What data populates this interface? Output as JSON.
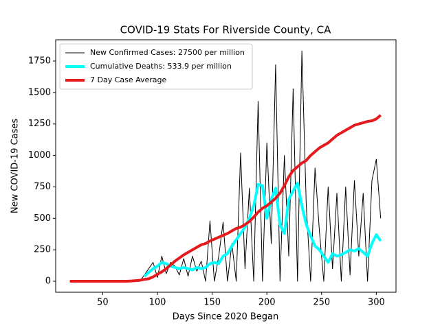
{
  "chart_data": {
    "type": "line",
    "title": "COVID-19 Stats For Riverside County, CA",
    "xlabel": "Days Since 2020 Began",
    "ylabel": "New COVID-19 Cases",
    "x": [
      20,
      24,
      28,
      32,
      36,
      40,
      44,
      48,
      52,
      56,
      60,
      64,
      68,
      72,
      76,
      80,
      84,
      88,
      92,
      96,
      100,
      104,
      108,
      112,
      116,
      120,
      124,
      128,
      132,
      136,
      140,
      144,
      148,
      152,
      156,
      160,
      164,
      168,
      172,
      176,
      180,
      184,
      188,
      192,
      196,
      200,
      204,
      208,
      212,
      216,
      220,
      224,
      228,
      232,
      236,
      240,
      244,
      248,
      252,
      256,
      260,
      264,
      268,
      272,
      276,
      280,
      284,
      288,
      292,
      296,
      300,
      304
    ],
    "series": [
      {
        "name": "New Confirmed Cases: 27500 per million",
        "color": "#000000",
        "width": 1,
        "values": [
          0,
          0,
          0,
          0,
          0,
          0,
          0,
          0,
          0,
          0,
          0,
          0,
          0,
          0,
          0,
          0,
          0,
          50,
          100,
          150,
          30,
          200,
          60,
          150,
          120,
          50,
          180,
          40,
          200,
          80,
          160,
          0,
          480,
          0,
          200,
          470,
          0,
          300,
          0,
          1020,
          100,
          740,
          0,
          1430,
          0,
          1100,
          300,
          1720,
          0,
          1000,
          200,
          1530,
          0,
          1830,
          600,
          0,
          900,
          400,
          0,
          750,
          100,
          700,
          0,
          750,
          50,
          800,
          200,
          700,
          0,
          800,
          970,
          500
        ]
      },
      {
        "name": "Cumulative Deaths: 533.9 per million",
        "color": "#00ffff",
        "width": 4,
        "values": [
          null,
          null,
          null,
          null,
          null,
          null,
          null,
          null,
          null,
          null,
          null,
          null,
          null,
          null,
          null,
          null,
          null,
          40,
          70,
          100,
          120,
          150,
          140,
          120,
          110,
          100,
          110,
          100,
          90,
          110,
          100,
          110,
          140,
          150,
          140,
          200,
          220,
          280,
          330,
          380,
          430,
          500,
          600,
          770,
          760,
          500,
          650,
          740,
          450,
          380,
          650,
          720,
          780,
          600,
          450,
          360,
          280,
          250,
          200,
          150,
          220,
          200,
          210,
          230,
          250,
          240,
          260,
          230,
          200,
          300,
          370,
          320
        ]
      },
      {
        "name": "7 Day Case Average",
        "color": "#e41a1c",
        "width": 4,
        "values": [
          0,
          0,
          0,
          0,
          0,
          0,
          0,
          0,
          0,
          0,
          0,
          0,
          0,
          0,
          2,
          5,
          8,
          15,
          20,
          35,
          55,
          75,
          100,
          130,
          160,
          185,
          210,
          230,
          250,
          270,
          290,
          300,
          320,
          335,
          350,
          365,
          380,
          400,
          420,
          430,
          450,
          475,
          510,
          550,
          580,
          600,
          630,
          660,
          700,
          760,
          830,
          880,
          910,
          940,
          960,
          1000,
          1030,
          1060,
          1080,
          1100,
          1130,
          1160,
          1180,
          1200,
          1220,
          1240,
          1250,
          1260,
          1270,
          1275,
          1290,
          1320
        ]
      }
    ],
    "xlim": [
      7,
      318
    ],
    "ylim": [
      -87,
      1919
    ],
    "xticks": [
      50,
      100,
      150,
      200,
      250,
      300
    ],
    "yticks": [
      0,
      250,
      500,
      750,
      1000,
      1250,
      1500,
      1750
    ],
    "legend": "upper left"
  }
}
